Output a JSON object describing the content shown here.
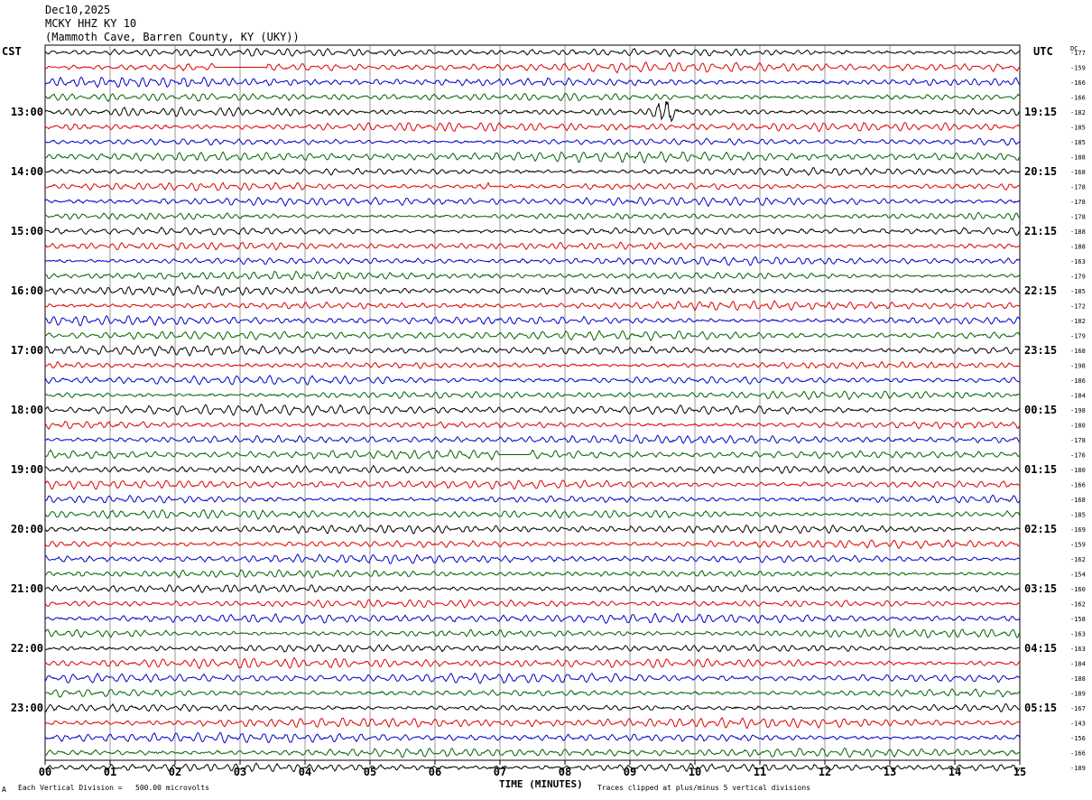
{
  "header": {
    "date": "Dec10,2025",
    "station": "MCKY HHZ KY 10",
    "location": "(Mammoth Cave, Barren County, KY (UKY))"
  },
  "left_zone": "CST",
  "right_zone": "UTC",
  "dc_label": "DC",
  "footer": {
    "division": "Each Vertical Division =   500.00 microvolts",
    "clipped": "Traces clipped at plus/minus 5 vertical divisions",
    "mark": "A"
  },
  "chart_data": {
    "type": "line",
    "title": "",
    "xlabel": "TIME (MINUTES)",
    "ylabel": "",
    "xlim": [
      0,
      15
    ],
    "x_ticks": [
      "00",
      "01",
      "02",
      "03",
      "04",
      "05",
      "06",
      "07",
      "08",
      "09",
      "10",
      "11",
      "12",
      "13",
      "14",
      "15"
    ],
    "traces_per_hour": 4,
    "trace_minutes": 15,
    "trace_colors": [
      "#000000",
      "#e00000",
      "#0000cc",
      "#006400"
    ],
    "left_hour_labels": [
      "13:00",
      "14:00",
      "15:00",
      "16:00",
      "17:00",
      "18:00",
      "19:00",
      "20:00",
      "21:00",
      "22:00",
      "23:00"
    ],
    "right_hour_labels": [
      "19:15",
      "20:15",
      "21:15",
      "22:15",
      "23:15",
      "00:15",
      "01:15",
      "02:15",
      "03:15",
      "04:15",
      "05:15"
    ],
    "dc_offsets": [
      "-177",
      "-159",
      "-166",
      "-166",
      "-182",
      "-185",
      "-185",
      "-188",
      "-168",
      "-178",
      "-178",
      "-178",
      "-188",
      "-188",
      "-163",
      "-179",
      "-185",
      "-172",
      "-182",
      "-179",
      "-168",
      "-198",
      "-186",
      "-184",
      "-198",
      "-180",
      "-178",
      "-176",
      "-180",
      "-166",
      "-168",
      "-185",
      "-169",
      "-159",
      "-162",
      "-154",
      "-160",
      "-162",
      "-158",
      "-163",
      "-163",
      "-184",
      "-188",
      "-189",
      "-167",
      "-143",
      "-156",
      "-166",
      "-189"
    ],
    "events": [
      {
        "trace": 1,
        "minute": 2.6,
        "type": "flatline",
        "duration": 0.8
      },
      {
        "trace": 4,
        "minute": 9.58,
        "type": "spike"
      },
      {
        "trace": 9,
        "minute": 6.7,
        "type": "burst"
      },
      {
        "trace": 27,
        "minute": 7.0,
        "type": "flatline",
        "duration": 0.45
      }
    ]
  }
}
